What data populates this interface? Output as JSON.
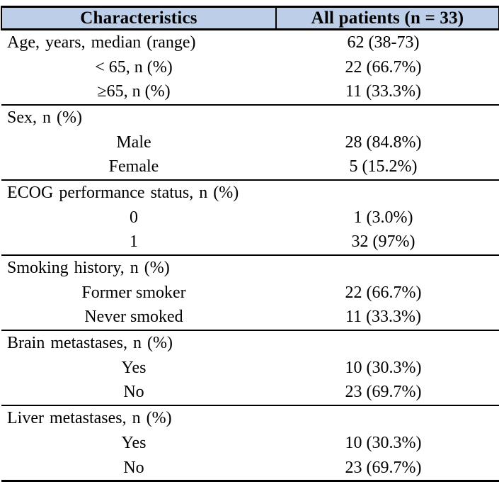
{
  "table": {
    "title_semantic": "Patient baseline characteristics",
    "header": {
      "characteristics": "Characteristics",
      "all_patients": "All patients (n = 33)"
    },
    "rows": [
      {
        "label": "Age, years, median (range)",
        "value": "62 (38-73)"
      },
      {
        "label": "< 65, n (%)",
        "value": "22 (66.7%)"
      },
      {
        "label": "≥65, n (%)",
        "value": "11 (33.3%)"
      },
      {
        "label": "Sex, n (%)",
        "value": ""
      },
      {
        "label": "Male",
        "value": "28 (84.8%)"
      },
      {
        "label": "Female",
        "value": "5 (15.2%)"
      },
      {
        "label": "ECOG performance status, n (%)",
        "value": ""
      },
      {
        "label": "0",
        "value": "1 (3.0%)"
      },
      {
        "label": "1",
        "value": "32 (97%)"
      },
      {
        "label": "Smoking history, n (%)",
        "value": ""
      },
      {
        "label": "Former smoker",
        "value": "22 (66.7%)"
      },
      {
        "label": "Never smoked",
        "value": "11 (33.3%)"
      },
      {
        "label": "Brain metastases, n (%)",
        "value": ""
      },
      {
        "label": "Yes",
        "value": "10 (30.3%)"
      },
      {
        "label": "No",
        "value": "23 (69.7%)"
      },
      {
        "label": "Liver metastases, n (%)",
        "value": ""
      },
      {
        "label": "Yes",
        "value": "10 (30.3%)"
      },
      {
        "label": "No",
        "value": "23 (69.7%)"
      }
    ],
    "colors": {
      "header_bg": "#BCCEE8",
      "border": "#000000"
    }
  }
}
